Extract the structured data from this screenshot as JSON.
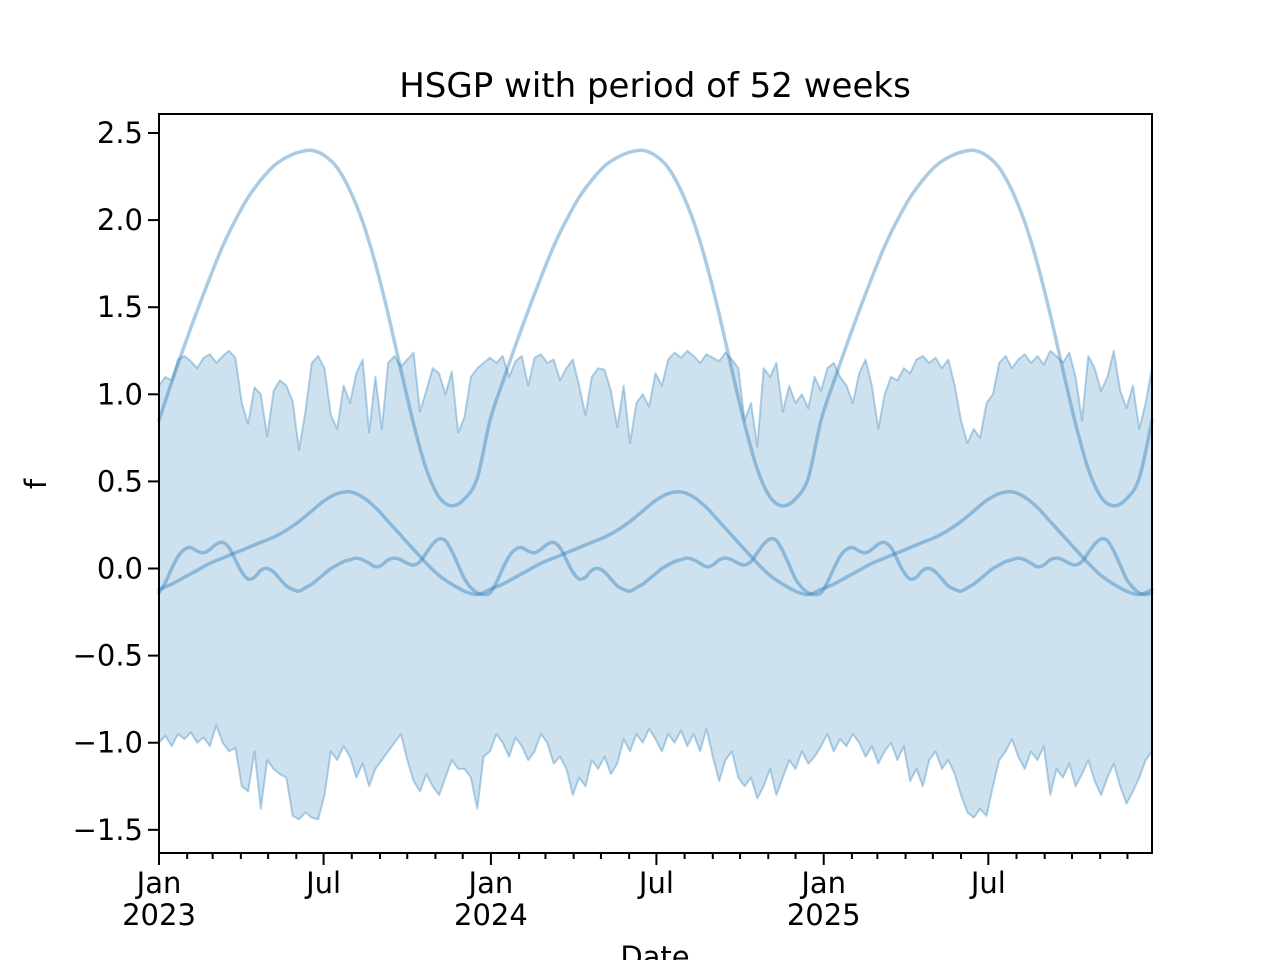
{
  "colors": {
    "line": "rgba(31,119,180,0.38)",
    "band_fill": "rgba(31,119,180,0.22)",
    "band_edge": "rgba(31,119,180,0.32)",
    "axis": "#000000",
    "background": "#ffffff"
  },
  "chart_data": {
    "type": "line",
    "title": "HSGP with period of 52 weeks",
    "xlabel": "Date",
    "ylabel": "f",
    "x_unit": "weeks since 2023-01-01",
    "xlim_weeks": [
      0,
      156
    ],
    "ylim": [
      -1.633,
      2.609
    ],
    "grid": false,
    "legend": "none",
    "y_ticks": [
      2.5,
      2.0,
      1.5,
      1.0,
      0.5,
      0.0,
      -0.5,
      -1.0,
      -1.5
    ],
    "y_tick_labels": [
      "2.5",
      "2.0",
      "1.5",
      "1.0",
      "0.5",
      "0.0",
      "−0.5",
      "−1.0",
      "−1.5"
    ],
    "x_major_ticks": [
      {
        "day": 0,
        "lines": [
          "Jan",
          "2023"
        ]
      },
      {
        "day": 181,
        "lines": [
          "Jul"
        ]
      },
      {
        "day": 365,
        "lines": [
          "Jan",
          "2024"
        ]
      },
      {
        "day": 547,
        "lines": [
          "Jul"
        ]
      },
      {
        "day": 731,
        "lines": [
          "Jan",
          "2025"
        ]
      },
      {
        "day": 912,
        "lines": [
          "Jul"
        ]
      }
    ],
    "x_minor_tick_days": [
      0,
      31,
      59,
      90,
      120,
      151,
      181,
      212,
      243,
      273,
      304,
      334,
      365,
      396,
      425,
      456,
      486,
      517,
      547,
      578,
      609,
      639,
      670,
      700,
      731,
      762,
      790,
      821,
      851,
      882,
      912,
      943,
      974,
      1004,
      1035,
      1065
    ],
    "band": {
      "name": "hdi-band",
      "week_step": 1,
      "upper": [
        1.05,
        1.1,
        1.08,
        1.2,
        1.22,
        1.19,
        1.15,
        1.21,
        1.23,
        1.18,
        1.22,
        1.25,
        1.21,
        0.95,
        0.83,
        1.04,
        1.0,
        0.76,
        1.02,
        1.08,
        1.05,
        0.96,
        0.68,
        0.9,
        1.18,
        1.22,
        1.15,
        0.88,
        0.8,
        1.05,
        0.95,
        1.12,
        1.2,
        0.78,
        1.1,
        0.8,
        1.18,
        1.22,
        1.16,
        1.2,
        1.24,
        0.9,
        1.02,
        1.15,
        1.12,
        1.0,
        1.13,
        0.78,
        0.87,
        1.1,
        1.15,
        1.18,
        1.21,
        1.18,
        1.22,
        1.1,
        1.19,
        1.22,
        1.05,
        1.21,
        1.23,
        1.18,
        1.2,
        1.08,
        1.15,
        1.2,
        1.05,
        0.88,
        1.1,
        1.15,
        1.14,
        1.02,
        0.81,
        1.05,
        0.72,
        0.95,
        1.0,
        0.93,
        1.12,
        1.05,
        1.2,
        1.24,
        1.21,
        1.25,
        1.22,
        1.18,
        1.23,
        1.21,
        1.19,
        1.24,
        1.2,
        1.15,
        0.85,
        0.95,
        0.7,
        1.15,
        1.1,
        1.18,
        0.9,
        1.05,
        0.95,
        1.0,
        0.92,
        1.1,
        1.02,
        1.15,
        1.18,
        1.1,
        1.05,
        0.95,
        1.12,
        1.2,
        1.05,
        0.8,
        1.0,
        1.1,
        1.08,
        1.15,
        1.12,
        1.2,
        1.22,
        1.18,
        1.21,
        1.15,
        1.2,
        1.05,
        0.85,
        0.72,
        0.8,
        0.75,
        0.95,
        1.0,
        1.18,
        1.22,
        1.15,
        1.2,
        1.23,
        1.18,
        1.22,
        1.17,
        1.25,
        1.22,
        1.18,
        1.24,
        1.1,
        0.85,
        1.22,
        1.15,
        1.02,
        1.1,
        1.25,
        1.02,
        0.92,
        1.05,
        0.8,
        0.95,
        1.15
      ],
      "lower": [
        -1.0,
        -0.96,
        -1.02,
        -0.95,
        -0.98,
        -0.94,
        -1.0,
        -0.97,
        -1.02,
        -0.9,
        -1.0,
        -1.05,
        -1.03,
        -1.25,
        -1.28,
        -1.05,
        -1.38,
        -1.1,
        -1.15,
        -1.18,
        -1.2,
        -1.42,
        -1.44,
        -1.4,
        -1.43,
        -1.44,
        -1.3,
        -1.05,
        -1.1,
        -1.02,
        -1.08,
        -1.2,
        -1.12,
        -1.25,
        -1.15,
        -1.1,
        -1.05,
        -1.0,
        -0.95,
        -1.1,
        -1.22,
        -1.28,
        -1.18,
        -1.25,
        -1.3,
        -1.2,
        -1.1,
        -1.15,
        -1.15,
        -1.2,
        -1.38,
        -1.08,
        -1.05,
        -0.95,
        -1.0,
        -1.08,
        -0.97,
        -1.02,
        -1.1,
        -1.05,
        -0.95,
        -1.0,
        -1.12,
        -1.08,
        -1.15,
        -1.3,
        -1.2,
        -1.25,
        -1.1,
        -1.15,
        -1.08,
        -1.18,
        -1.12,
        -0.98,
        -1.05,
        -0.95,
        -1.0,
        -0.92,
        -0.98,
        -1.05,
        -0.95,
        -1.0,
        -0.93,
        -1.02,
        -0.95,
        -1.05,
        -0.92,
        -1.08,
        -1.22,
        -1.1,
        -1.05,
        -1.2,
        -1.25,
        -1.2,
        -1.32,
        -1.25,
        -1.15,
        -1.3,
        -1.2,
        -1.1,
        -1.15,
        -1.05,
        -1.12,
        -1.08,
        -1.02,
        -0.95,
        -1.05,
        -0.98,
        -1.02,
        -0.95,
        -1.0,
        -1.08,
        -1.02,
        -1.12,
        -1.05,
        -1.0,
        -1.1,
        -1.02,
        -1.22,
        -1.15,
        -1.25,
        -1.1,
        -1.05,
        -1.15,
        -1.1,
        -1.18,
        -1.3,
        -1.4,
        -1.43,
        -1.38,
        -1.42,
        -1.25,
        -1.1,
        -1.05,
        -0.98,
        -1.08,
        -1.15,
        -1.05,
        -1.1,
        -1.02,
        -1.3,
        -1.15,
        -1.2,
        -1.12,
        -1.25,
        -1.18,
        -1.1,
        -1.22,
        -1.3,
        -1.2,
        -1.12,
        -1.25,
        -1.35,
        -1.28,
        -1.2,
        -1.1,
        -1.05
      ]
    },
    "series": [
      {
        "name": "sample-curve-large",
        "period_weeks": 52,
        "week_step": 2,
        "repeats": 3,
        "values": [
          0.85,
          1.07,
          1.28,
          1.48,
          1.67,
          1.85,
          2.0,
          2.13,
          2.23,
          2.31,
          2.36,
          2.39,
          2.4,
          2.37,
          2.3,
          2.17,
          1.99,
          1.75,
          1.46,
          1.14,
          0.83,
          0.57,
          0.41,
          0.36,
          0.4,
          0.52,
          0.85
        ]
      },
      {
        "name": "sample-curve-medium",
        "period_weeks": 52,
        "week_step": 2,
        "repeats": 3,
        "values": [
          -0.12,
          -0.09,
          -0.05,
          -0.01,
          0.03,
          0.06,
          0.09,
          0.12,
          0.15,
          0.18,
          0.22,
          0.27,
          0.33,
          0.39,
          0.43,
          0.44,
          0.41,
          0.35,
          0.27,
          0.19,
          0.11,
          0.03,
          -0.04,
          -0.09,
          -0.13,
          -0.15,
          -0.12
        ]
      },
      {
        "name": "sample-curve-small",
        "period_weeks": 52,
        "week_step": 1,
        "repeats": 3,
        "values": [
          -0.14,
          -0.08,
          0.0,
          0.07,
          0.11,
          0.12,
          0.1,
          0.09,
          0.11,
          0.14,
          0.15,
          0.12,
          0.05,
          -0.02,
          -0.06,
          -0.05,
          -0.01,
          0.0,
          -0.02,
          -0.06,
          -0.1,
          -0.12,
          -0.13,
          -0.11,
          -0.09,
          -0.06,
          -0.03,
          0.0,
          0.02,
          0.04,
          0.05,
          0.06,
          0.05,
          0.03,
          0.01,
          0.02,
          0.05,
          0.06,
          0.05,
          0.03,
          0.02,
          0.04,
          0.09,
          0.14,
          0.17,
          0.16,
          0.1,
          0.02,
          -0.06,
          -0.11,
          -0.14,
          -0.15,
          -0.14
        ]
      }
    ]
  }
}
